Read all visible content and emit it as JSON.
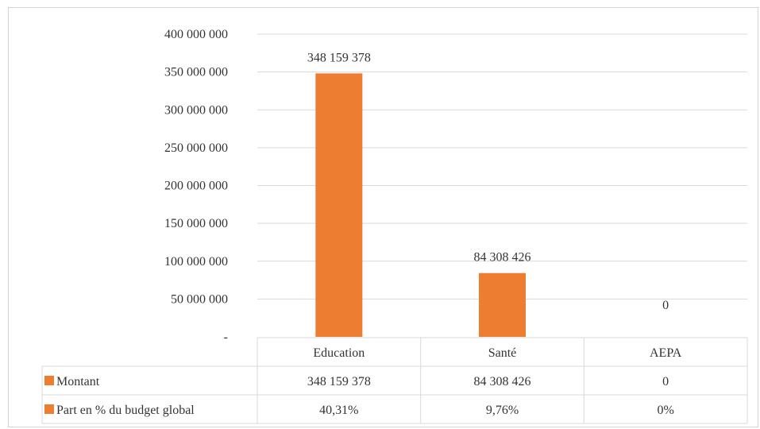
{
  "chart_data": {
    "type": "bar",
    "categories": [
      "Education",
      "Santé",
      "AEPA"
    ],
    "series": [
      {
        "name": "Montant",
        "values": [
          348159378,
          84308426,
          0
        ],
        "color": "#ED7D31",
        "labels": [
          "348 159 378",
          "84 308 426",
          "0"
        ]
      },
      {
        "name": "Part en % du budget global",
        "values": [
          40.31,
          9.76,
          0
        ],
        "color": "#ED7D31",
        "labels": [
          "40,31%",
          "9,76%",
          "0%"
        ],
        "plotted": false
      }
    ],
    "ylim": [
      0,
      400000000
    ],
    "yticks": [
      {
        "value": 0,
        "label": "-"
      },
      {
        "value": 50000000,
        "label": "50 000 000"
      },
      {
        "value": 100000000,
        "label": "100 000 000"
      },
      {
        "value": 150000000,
        "label": "150 000 000"
      },
      {
        "value": 200000000,
        "label": "200 000 000"
      },
      {
        "value": 250000000,
        "label": "250 000 000"
      },
      {
        "value": 300000000,
        "label": "300 000 000"
      },
      {
        "value": 350000000,
        "label": "350 000 000"
      },
      {
        "value": 400000000,
        "label": "400 000 000"
      }
    ],
    "title": "",
    "xlabel": "",
    "ylabel": "",
    "grid": true,
    "legend": "data-table",
    "colors": {
      "bar": "#ED7D31",
      "grid": "#d9d9d9",
      "text": "#333333"
    }
  }
}
